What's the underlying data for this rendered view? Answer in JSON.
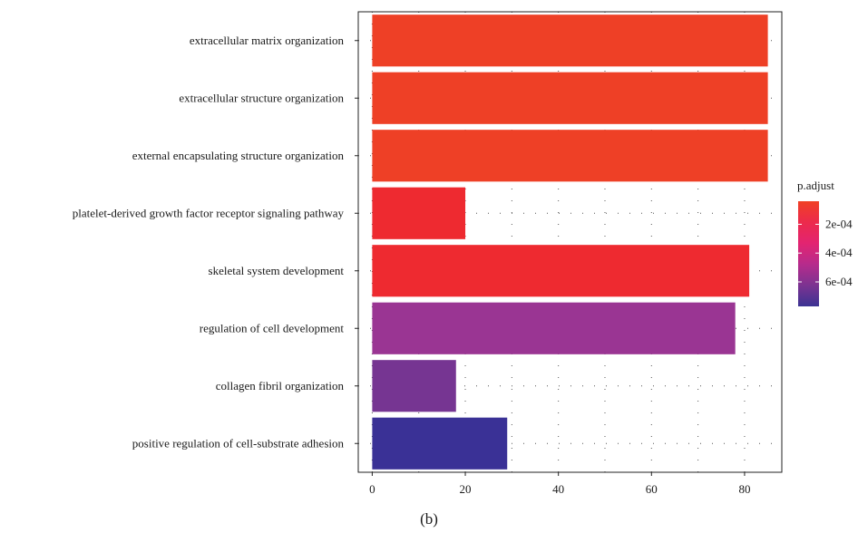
{
  "caption": "(b)",
  "chart_data": {
    "type": "bar",
    "orientation": "horizontal",
    "categories": [
      "extracellular matrix organization",
      "extracellular structure organization",
      "external encapsulating structure organization",
      "platelet-derived growth factor receptor signaling pathway",
      "skeletal system development",
      "regulation of cell development",
      "collagen fibril organization",
      "positive regulation of cell-substrate adhesion"
    ],
    "values": [
      85,
      85,
      85,
      20,
      81,
      78,
      18,
      29
    ],
    "p_adjust": [
      5e-05,
      5e-05,
      5e-05,
      7e-05,
      7e-05,
      0.00044,
      0.00052,
      0.00074
    ],
    "bar_colors": [
      "#ee4026",
      "#ee4026",
      "#ee4026",
      "#ee2a30",
      "#ee2a30",
      "#9a3593",
      "#763592",
      "#3a3196"
    ],
    "xlim": [
      -3,
      88
    ],
    "xticks": [
      0,
      20,
      40,
      60,
      80
    ],
    "xlabel": "",
    "ylabel": "",
    "grid": "dotted",
    "legend": {
      "title": "p.adjust",
      "position": "right",
      "labels": [
        "2e-04",
        "4e-04",
        "6e-04"
      ],
      "label_values": [
        0.0002,
        0.0004,
        0.0006
      ],
      "range": [
        4e-05,
        0.00077
      ],
      "colors": [
        "#f04124",
        "#ec2a4c",
        "#e32471",
        "#b62b8c",
        "#7c3391",
        "#3b3393"
      ]
    }
  }
}
